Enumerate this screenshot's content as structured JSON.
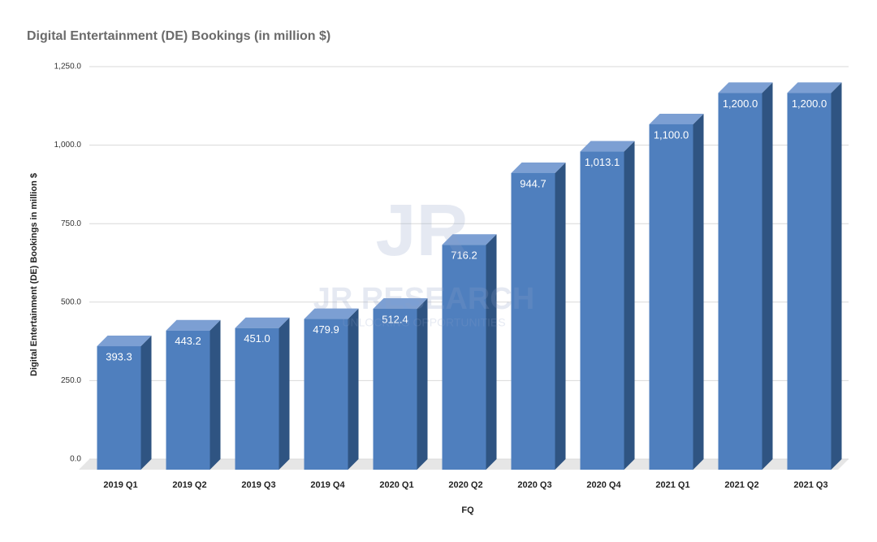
{
  "chart_data": {
    "type": "bar3d",
    "title": "Digital Entertainment (DE) Bookings (in million $)",
    "x_label": "FQ",
    "y_label": "Digital Entertainment (DE) Bookings in million $",
    "watermark": [
      "JR",
      "JR RESEARCH",
      "UNLOCKING OPPORTUNITIES"
    ],
    "categories": [
      "2019 Q1",
      "2019 Q2",
      "2019 Q3",
      "2019 Q4",
      "2020 Q1",
      "2020 Q2",
      "2020 Q3",
      "2020 Q4",
      "2021 Q1",
      "2021 Q2",
      "2021 Q3"
    ],
    "values": [
      393.3,
      443.2,
      451.0,
      479.9,
      512.4,
      716.2,
      944.7,
      1013.1,
      1100.0,
      1200.0,
      1200.0
    ],
    "value_labels": [
      "393.3",
      "443.2",
      "451.0",
      "479.9",
      "512.4",
      "716.2",
      "944.7",
      "1,013.1",
      "1,100.0",
      "1,200.0",
      "1,200.0"
    ],
    "color": "#4f7fbe",
    "ylim": [
      0,
      1250
    ],
    "yticks": [
      {
        "value": 0,
        "label": "0.0"
      },
      {
        "value": 250,
        "label": "250.0"
      },
      {
        "value": 500,
        "label": "500.0"
      },
      {
        "value": 750,
        "label": "750.0"
      },
      {
        "value": 1000,
        "label": "1,000.0"
      },
      {
        "value": 1250,
        "label": "1,250.0"
      }
    ],
    "grid": true
  }
}
